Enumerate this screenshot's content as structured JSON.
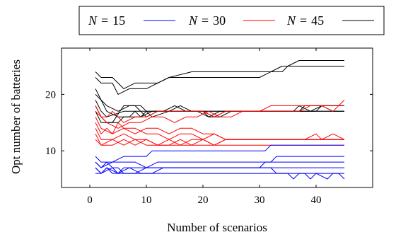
{
  "chart_data": {
    "type": "line",
    "title": "",
    "xlabel": "Number of scenarios",
    "ylabel": "Opt number of batteries",
    "xlim": [
      -5,
      50
    ],
    "ylim": [
      3.5,
      28.2
    ],
    "xticks": [
      0,
      10,
      20,
      30,
      40
    ],
    "yticks": [
      10,
      20
    ],
    "grid": false,
    "legend": {
      "placement": "top-center",
      "entries": [
        {
          "label_var": "N",
          "label_eq": "=",
          "label_val": "15",
          "color": "#0000ff"
        },
        {
          "label_var": "N",
          "label_eq": "=",
          "label_val": "30",
          "color": "#ff0000"
        },
        {
          "label_var": "N",
          "label_eq": "=",
          "label_val": "45",
          "color": "#000000"
        }
      ]
    },
    "colors": {
      "N15": "#0000ff",
      "N30": "#ff0000",
      "N45": "#000000"
    },
    "series": [
      {
        "group": "N45",
        "color": "#000000",
        "points": [
          [
            1,
            23
          ],
          [
            2,
            22
          ],
          [
            4,
            22
          ],
          [
            5,
            20
          ],
          [
            7,
            21
          ],
          [
            10,
            21
          ],
          [
            12,
            22
          ],
          [
            14,
            23
          ],
          [
            30,
            23
          ],
          [
            32,
            24
          ],
          [
            34,
            25
          ],
          [
            45,
            25
          ]
        ]
      },
      {
        "group": "N45",
        "color": "#000000",
        "points": [
          [
            1,
            24
          ],
          [
            2,
            23
          ],
          [
            4,
            23
          ],
          [
            6,
            21
          ],
          [
            8,
            22
          ],
          [
            12,
            22
          ],
          [
            14,
            23
          ],
          [
            18,
            24
          ],
          [
            34,
            24
          ],
          [
            35,
            25
          ],
          [
            37,
            26
          ],
          [
            45,
            26
          ]
        ]
      },
      {
        "group": "N45",
        "color": "#000000",
        "points": [
          [
            1,
            21
          ],
          [
            2,
            19
          ],
          [
            3,
            17
          ],
          [
            5,
            16
          ],
          [
            7,
            16
          ],
          [
            8,
            17
          ],
          [
            45,
            17
          ]
        ]
      },
      {
        "group": "N45",
        "color": "#000000",
        "points": [
          [
            1,
            19
          ],
          [
            2,
            17
          ],
          [
            3,
            16
          ],
          [
            6,
            17
          ],
          [
            8,
            17
          ],
          [
            9,
            16
          ],
          [
            11,
            17
          ],
          [
            20,
            17
          ],
          [
            21,
            16
          ],
          [
            23,
            17
          ],
          [
            37,
            17
          ],
          [
            38,
            18
          ],
          [
            45,
            18
          ]
        ]
      },
      {
        "group": "N45",
        "color": "#000000",
        "points": [
          [
            1,
            18
          ],
          [
            2,
            16
          ],
          [
            3,
            15
          ],
          [
            5,
            15
          ],
          [
            6,
            16
          ],
          [
            9,
            16
          ],
          [
            10,
            17
          ],
          [
            11,
            16
          ],
          [
            14,
            17
          ],
          [
            16,
            18
          ],
          [
            18,
            17
          ],
          [
            20,
            17
          ],
          [
            22,
            16
          ],
          [
            24,
            17
          ],
          [
            36,
            17
          ],
          [
            37,
            18
          ],
          [
            39,
            17
          ],
          [
            41,
            18
          ],
          [
            45,
            18
          ]
        ]
      },
      {
        "group": "N45",
        "color": "#000000",
        "points": [
          [
            1,
            20
          ],
          [
            3,
            18
          ],
          [
            5,
            17
          ],
          [
            7,
            18
          ],
          [
            9,
            18
          ],
          [
            10,
            17
          ],
          [
            13,
            17
          ],
          [
            15,
            18
          ],
          [
            17,
            17
          ],
          [
            19,
            17
          ],
          [
            21,
            16
          ],
          [
            23,
            16
          ],
          [
            25,
            17
          ],
          [
            40,
            17
          ],
          [
            41,
            18
          ],
          [
            43,
            17
          ],
          [
            45,
            17
          ]
        ]
      },
      {
        "group": "N45",
        "color": "#000000",
        "points": [
          [
            1,
            17
          ],
          [
            2,
            15
          ],
          [
            4,
            15
          ],
          [
            6,
            18
          ],
          [
            8,
            18
          ],
          [
            10,
            16
          ],
          [
            12,
            17
          ],
          [
            45,
            17
          ]
        ]
      },
      {
        "group": "N30",
        "color": "#ff0000",
        "points": [
          [
            1,
            18
          ],
          [
            2,
            16
          ],
          [
            3,
            16
          ],
          [
            4,
            17
          ],
          [
            5,
            16
          ],
          [
            6,
            15
          ],
          [
            8,
            16
          ],
          [
            10,
            16
          ],
          [
            12,
            17
          ],
          [
            18,
            17
          ],
          [
            20,
            17
          ],
          [
            22,
            16
          ],
          [
            24,
            17
          ],
          [
            30,
            17
          ],
          [
            32,
            18
          ],
          [
            45,
            18
          ]
        ]
      },
      {
        "group": "N30",
        "color": "#ff0000",
        "points": [
          [
            1,
            17
          ],
          [
            3,
            15
          ],
          [
            5,
            14
          ],
          [
            7,
            15
          ],
          [
            9,
            15
          ],
          [
            11,
            16
          ],
          [
            13,
            16
          ],
          [
            15,
            15
          ],
          [
            17,
            16
          ],
          [
            19,
            16
          ],
          [
            21,
            17
          ],
          [
            23,
            16
          ],
          [
            25,
            16
          ],
          [
            27,
            17
          ],
          [
            37,
            17
          ],
          [
            39,
            18
          ],
          [
            41,
            18
          ],
          [
            43,
            17
          ],
          [
            45,
            19
          ]
        ]
      },
      {
        "group": "N30",
        "color": "#ff0000",
        "points": [
          [
            1,
            16
          ],
          [
            2,
            14
          ],
          [
            4,
            13
          ],
          [
            6,
            14
          ],
          [
            8,
            13
          ],
          [
            10,
            14
          ],
          [
            12,
            14
          ],
          [
            14,
            13
          ],
          [
            16,
            14
          ],
          [
            18,
            14
          ],
          [
            20,
            13
          ],
          [
            22,
            13
          ],
          [
            24,
            12
          ],
          [
            45,
            12
          ]
        ]
      },
      {
        "group": "N30",
        "color": "#ff0000",
        "points": [
          [
            1,
            15
          ],
          [
            2,
            13
          ],
          [
            3,
            14
          ],
          [
            4,
            13
          ],
          [
            5,
            15
          ],
          [
            6,
            14
          ],
          [
            8,
            14
          ],
          [
            10,
            13
          ],
          [
            12,
            13
          ],
          [
            14,
            12
          ],
          [
            16,
            13
          ],
          [
            18,
            13
          ],
          [
            20,
            12
          ],
          [
            22,
            13
          ],
          [
            24,
            12
          ],
          [
            38,
            12
          ],
          [
            40,
            13
          ],
          [
            41,
            12
          ],
          [
            43,
            13
          ],
          [
            45,
            12
          ]
        ]
      },
      {
        "group": "N30",
        "color": "#ff0000",
        "points": [
          [
            1,
            14
          ],
          [
            2,
            12
          ],
          [
            4,
            12
          ],
          [
            6,
            13
          ],
          [
            8,
            12
          ],
          [
            10,
            12
          ],
          [
            12,
            11
          ],
          [
            16,
            11
          ],
          [
            18,
            12
          ],
          [
            20,
            12
          ],
          [
            22,
            11
          ],
          [
            24,
            12
          ],
          [
            45,
            12
          ]
        ]
      },
      {
        "group": "N30",
        "color": "#ff0000",
        "points": [
          [
            1,
            13
          ],
          [
            2,
            11
          ],
          [
            4,
            11
          ],
          [
            6,
            12
          ],
          [
            8,
            11
          ],
          [
            10,
            12
          ],
          [
            12,
            11
          ],
          [
            14,
            11
          ],
          [
            16,
            12
          ],
          [
            18,
            11
          ],
          [
            20,
            12
          ],
          [
            22,
            11
          ],
          [
            24,
            12
          ],
          [
            45,
            12
          ]
        ]
      },
      {
        "group": "N30",
        "color": "#ff0000",
        "points": [
          [
            1,
            12
          ],
          [
            2,
            11
          ],
          [
            4,
            12
          ],
          [
            6,
            11
          ],
          [
            8,
            12
          ],
          [
            10,
            11
          ],
          [
            12,
            11
          ],
          [
            14,
            12
          ],
          [
            16,
            11
          ],
          [
            45,
            11
          ]
        ]
      },
      {
        "group": "N15",
        "color": "#0000ff",
        "points": [
          [
            1,
            9
          ],
          [
            2,
            8
          ],
          [
            4,
            8
          ],
          [
            6,
            9
          ],
          [
            10,
            9
          ],
          [
            11,
            10
          ],
          [
            31,
            10
          ],
          [
            32,
            11
          ],
          [
            45,
            11
          ]
        ]
      },
      {
        "group": "N15",
        "color": "#0000ff",
        "points": [
          [
            1,
            8
          ],
          [
            2,
            7
          ],
          [
            4,
            8
          ],
          [
            6,
            8
          ],
          [
            8,
            8
          ],
          [
            10,
            7
          ],
          [
            12,
            8
          ],
          [
            32,
            8
          ],
          [
            33,
            9
          ],
          [
            45,
            9
          ]
        ]
      },
      {
        "group": "N15",
        "color": "#0000ff",
        "points": [
          [
            1,
            8
          ],
          [
            2,
            7
          ],
          [
            3,
            8
          ],
          [
            4,
            7
          ],
          [
            5,
            6
          ],
          [
            6,
            7
          ],
          [
            30,
            7
          ],
          [
            31,
            8
          ],
          [
            45,
            8
          ]
        ]
      },
      {
        "group": "N15",
        "color": "#0000ff",
        "points": [
          [
            1,
            7
          ],
          [
            2,
            6
          ],
          [
            4,
            7
          ],
          [
            5,
            7
          ],
          [
            6,
            6
          ],
          [
            8,
            6
          ],
          [
            10,
            7
          ],
          [
            45,
            7
          ]
        ]
      },
      {
        "group": "N15",
        "color": "#0000ff",
        "points": [
          [
            1,
            7
          ],
          [
            2,
            6
          ],
          [
            3,
            7
          ],
          [
            5,
            6
          ],
          [
            7,
            7
          ],
          [
            9,
            6
          ],
          [
            11,
            6
          ],
          [
            13,
            7
          ],
          [
            32,
            7
          ],
          [
            33,
            6
          ],
          [
            35,
            6
          ],
          [
            36,
            5
          ],
          [
            37,
            6
          ],
          [
            38,
            6
          ],
          [
            39,
            5
          ],
          [
            40,
            6
          ],
          [
            42,
            5
          ],
          [
            43,
            6
          ],
          [
            44,
            6
          ],
          [
            45,
            5
          ]
        ]
      },
      {
        "group": "N15",
        "color": "#0000ff",
        "points": [
          [
            1,
            6
          ],
          [
            2,
            6
          ],
          [
            3,
            7
          ],
          [
            4,
            6
          ],
          [
            45,
            6
          ]
        ]
      }
    ]
  }
}
